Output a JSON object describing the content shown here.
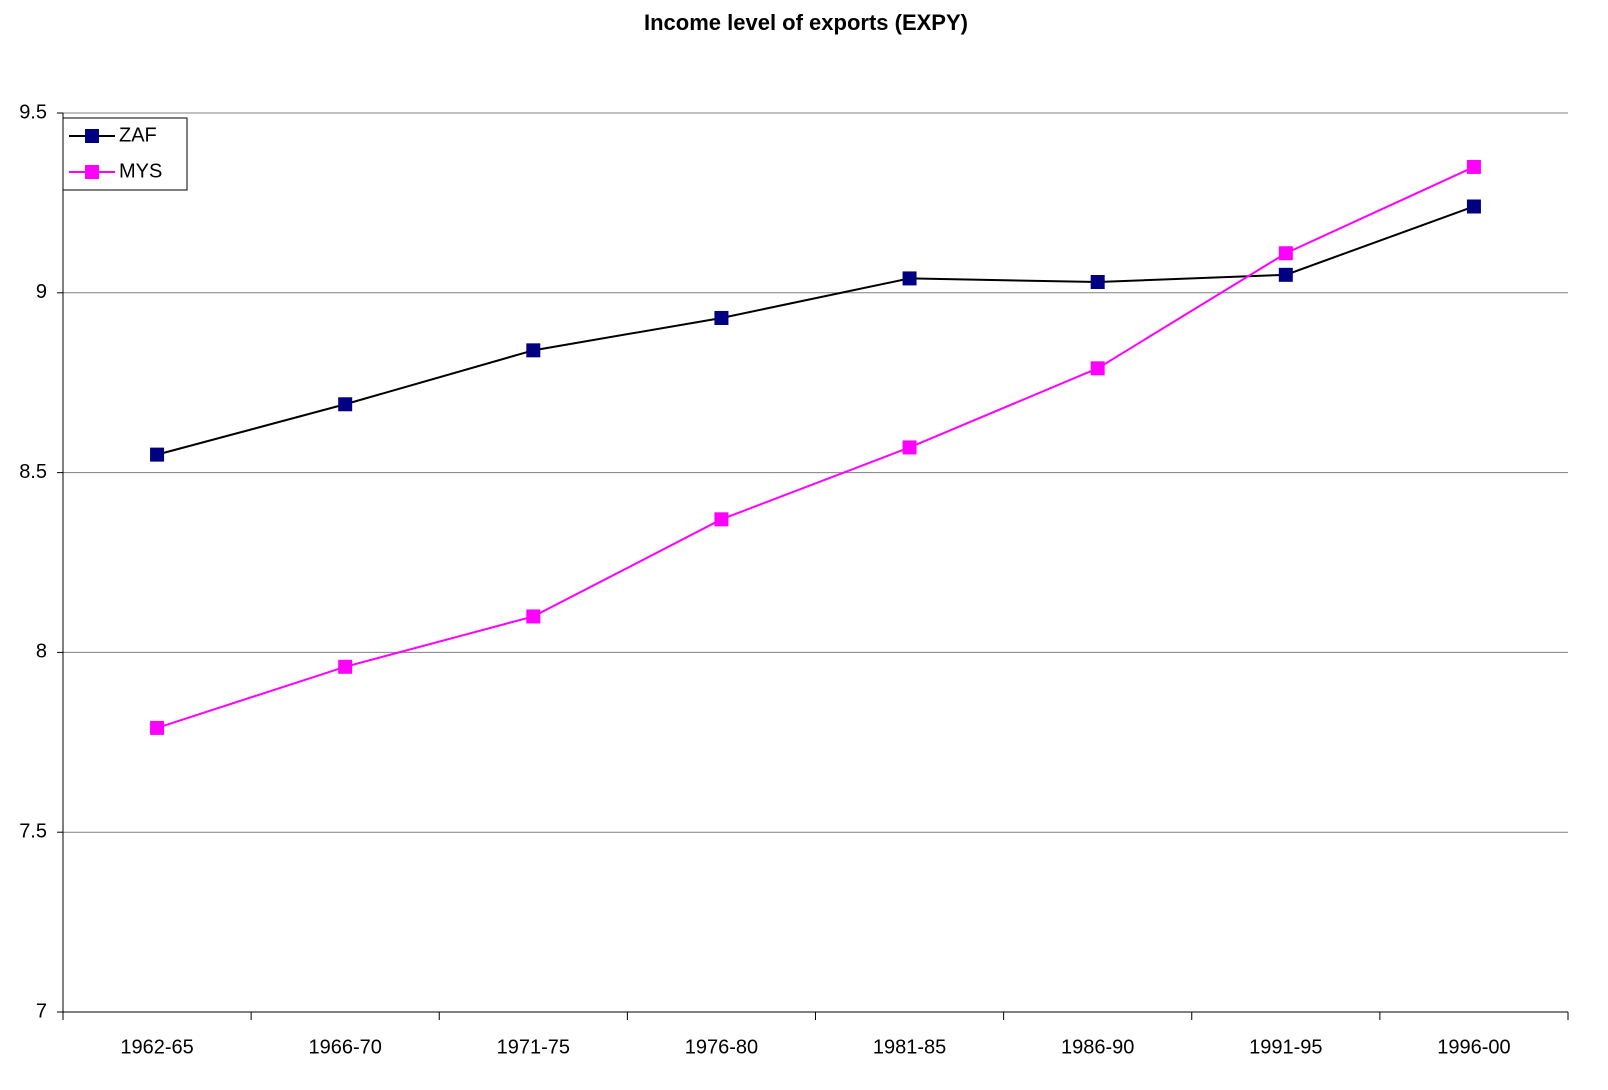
{
  "chart_data": {
    "type": "line",
    "title": "Income level of exports (EXPY)",
    "categories": [
      "1962-65",
      "1966-70",
      "1971-75",
      "1976-80",
      "1981-85",
      "1986-90",
      "1991-95",
      "1996-00"
    ],
    "series": [
      {
        "name": "ZAF",
        "color": "#000080",
        "line_color": "#000000",
        "values": [
          8.55,
          8.69,
          8.84,
          8.93,
          9.04,
          9.03,
          9.05,
          9.24
        ]
      },
      {
        "name": "MYS",
        "color": "#ff00ff",
        "line_color": "#ff00ff",
        "values": [
          7.79,
          7.96,
          8.1,
          8.37,
          8.57,
          8.79,
          9.11,
          9.35
        ]
      }
    ],
    "ylim": [
      7,
      9.5
    ],
    "yticks": [
      7,
      7.5,
      8,
      8.5,
      9,
      9.5
    ],
    "grid": true,
    "legend": "top-left"
  }
}
